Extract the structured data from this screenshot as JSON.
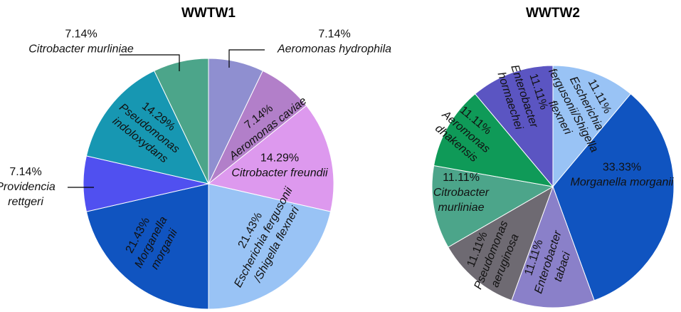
{
  "chart_data": [
    {
      "type": "pie",
      "title": "WWTW1",
      "slices": [
        {
          "percent_label": "7.14%",
          "name": [
            "Aeromonas hydrophila"
          ],
          "value": 7.14,
          "color": "#8f8fd0"
        },
        {
          "percent_label": "7.14%",
          "name": [
            "Aeromonas caviae"
          ],
          "value": 7.14,
          "color": "#b27fc9"
        },
        {
          "percent_label": "14.29%",
          "name": [
            "Citrobacter freundii"
          ],
          "value": 14.29,
          "color": "#dd99ee"
        },
        {
          "percent_label": "21.43%",
          "name": [
            "Escherichia fergusonii",
            "/Shigella flexneri"
          ],
          "value": 21.43,
          "color": "#99c3f5"
        },
        {
          "percent_label": "21.43%",
          "name": [
            "Morganella",
            "morganii"
          ],
          "value": 21.43,
          "color": "#1054c0"
        },
        {
          "percent_label": "7.14%",
          "name": [
            "Providencia",
            "rettgeri"
          ],
          "value": 7.14,
          "color": "#5050f0"
        },
        {
          "percent_label": "14.29%",
          "name": [
            "Pseudomonas",
            "indoloxydans"
          ],
          "value": 14.29,
          "color": "#1797b2"
        },
        {
          "percent_label": "7.14%",
          "name": [
            "Citrobacter murliniae"
          ],
          "value": 7.14,
          "color": "#4ca58a"
        }
      ]
    },
    {
      "type": "pie",
      "title": "WWTW2",
      "slices": [
        {
          "percent_label": "11.11%",
          "name": [
            "Escherichia",
            "fergusonii/Shigella",
            "flexneri"
          ],
          "value": 11.11,
          "color": "#99c3f5"
        },
        {
          "percent_label": "33.33%",
          "name": [
            "Morganella morganii"
          ],
          "value": 33.33,
          "color": "#1054c0"
        },
        {
          "percent_label": "11.11%",
          "name": [
            "Enterobacter",
            "tabaci"
          ],
          "value": 11.11,
          "color": "#8a80c9"
        },
        {
          "percent_label": "11.11%",
          "name": [
            "Pseudomonas",
            "aeruginosa"
          ],
          "value": 11.11,
          "color": "#6e6a72"
        },
        {
          "percent_label": "11.11%",
          "name": [
            "Citrobacter",
            "murliniae"
          ],
          "value": 11.11,
          "color": "#4ca58a"
        },
        {
          "percent_label": "11.11%",
          "name": [
            "Aeromonas",
            "dhakensis"
          ],
          "value": 11.11,
          "color": "#0f9a58"
        },
        {
          "percent_label": "11.11%",
          "name": [
            "Enterobacter",
            "hormaechei"
          ],
          "value": 11.11,
          "color": "#5b55c2"
        }
      ]
    }
  ]
}
